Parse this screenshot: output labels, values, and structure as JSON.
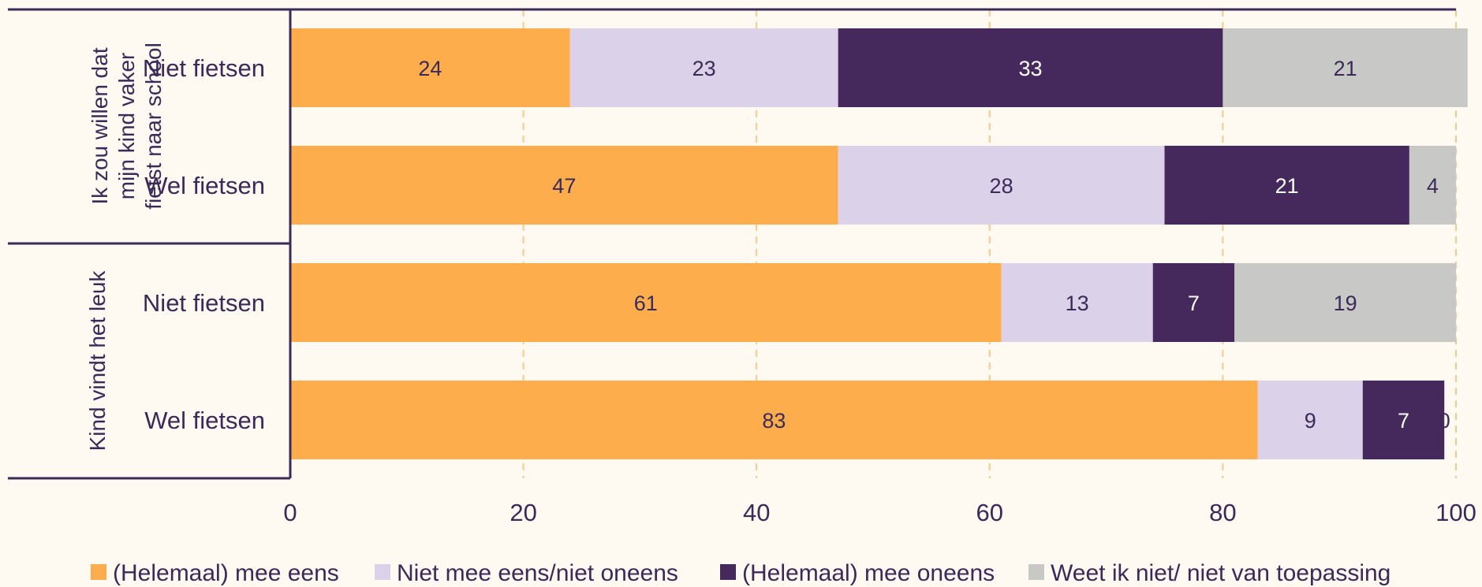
{
  "chart_data": {
    "type": "bar",
    "orientation": "horizontal",
    "stacked": true,
    "groups": [
      {
        "label": "Ik zou willen dat mijn kind vaker fietst naar school",
        "lines": [
          "Ik zou willen dat",
          "mijn kind vaker",
          "fietst naar school"
        ],
        "categories": [
          "Niet fietsen",
          "Wel fietsen"
        ]
      },
      {
        "label": "Kind vindt het leuk",
        "lines": [
          "Kind vindt het leuk"
        ],
        "categories": [
          "Niet fietsen",
          "Wel fietsen"
        ]
      }
    ],
    "categories": [
      "Niet fietsen",
      "Wel fietsen",
      "Niet fietsen",
      "Wel fietsen"
    ],
    "series": [
      {
        "name": "(Helemaal) mee eens",
        "color": "#fead4d",
        "label_color": "#3b2a58",
        "values": [
          24,
          47,
          61,
          83
        ]
      },
      {
        "name": "Niet mee eens/niet oneens",
        "color": "#dbd1e8",
        "label_color": "#3b2a58",
        "values": [
          23,
          28,
          13,
          9
        ]
      },
      {
        "name": "(Helemaal) mee oneens",
        "color": "#45295c",
        "label_color": "#ffffff",
        "values": [
          33,
          21,
          7,
          7
        ]
      },
      {
        "name": "Weet ik niet/ niet van toepassing",
        "color": "#c8c8c6",
        "label_color": "#3b2a58",
        "values": [
          21,
          4,
          19,
          0
        ]
      }
    ],
    "xlim": [
      0,
      100
    ],
    "xticks": [
      0,
      20,
      40,
      60,
      80,
      100
    ],
    "grid": "vertical-dashed",
    "legend": "bottom"
  }
}
